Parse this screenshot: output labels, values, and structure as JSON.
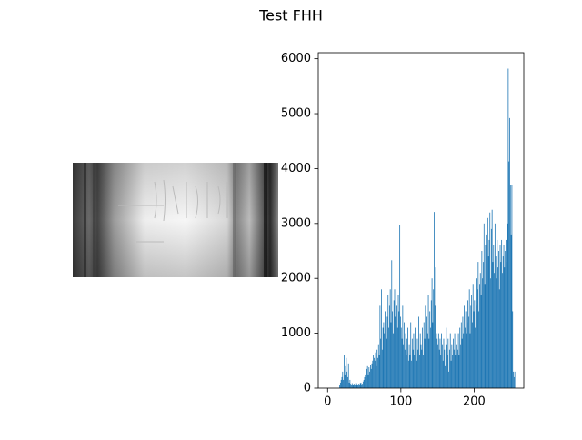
{
  "title": "Test FHH",
  "chart_data": {
    "type": "histogram",
    "color": "#1f77b4",
    "bins": [
      0,
      1,
      2,
      3,
      4,
      5,
      6,
      7,
      8,
      9,
      10,
      11,
      12,
      13,
      14,
      15,
      16,
      17,
      18,
      19,
      20,
      21,
      22,
      23,
      24,
      25,
      26,
      27,
      28,
      29,
      30,
      31,
      32,
      33,
      34,
      35,
      36,
      37,
      38,
      39,
      40,
      41,
      42,
      43,
      44,
      45,
      46,
      47,
      48,
      49,
      50,
      51,
      52,
      53,
      54,
      55,
      56,
      57,
      58,
      59,
      60,
      61,
      62,
      63,
      64,
      65,
      66,
      67,
      68,
      69,
      70,
      71,
      72,
      73,
      74,
      75,
      76,
      77,
      78,
      79,
      80,
      81,
      82,
      83,
      84,
      85,
      86,
      87,
      88,
      89,
      90,
      91,
      92,
      93,
      94,
      95,
      96,
      97,
      98,
      99,
      100,
      101,
      102,
      103,
      104,
      105,
      106,
      107,
      108,
      109,
      110,
      111,
      112,
      113,
      114,
      115,
      116,
      117,
      118,
      119,
      120,
      121,
      122,
      123,
      124,
      125,
      126,
      127,
      128,
      129,
      130,
      131,
      132,
      133,
      134,
      135,
      136,
      137,
      138,
      139,
      140,
      141,
      142,
      143,
      144,
      145,
      146,
      147,
      148,
      149,
      150,
      151,
      152,
      153,
      154,
      155,
      156,
      157,
      158,
      159,
      160,
      161,
      162,
      163,
      164,
      165,
      166,
      167,
      168,
      169,
      170,
      171,
      172,
      173,
      174,
      175,
      176,
      177,
      178,
      179,
      180,
      181,
      182,
      183,
      184,
      185,
      186,
      187,
      188,
      189,
      190,
      191,
      192,
      193,
      194,
      195,
      196,
      197,
      198,
      199,
      200,
      201,
      202,
      203,
      204,
      205,
      206,
      207,
      208,
      209,
      210,
      211,
      212,
      213,
      214,
      215,
      216,
      217,
      218,
      219,
      220,
      221,
      222,
      223,
      224,
      225,
      226,
      227,
      228,
      229,
      230,
      231,
      232,
      233,
      234,
      235,
      236,
      237,
      238,
      239,
      240,
      241,
      242,
      243,
      244,
      245,
      246,
      247,
      248,
      249,
      250,
      251,
      252,
      253,
      254,
      255,
      256
    ],
    "values": [
      0,
      0,
      0,
      0,
      0,
      0,
      0,
      0,
      0,
      0,
      0,
      0,
      0,
      0,
      0,
      0,
      50,
      100,
      150,
      200,
      300,
      150,
      600,
      250,
      400,
      550,
      300,
      200,
      450,
      100,
      150,
      80,
      60,
      90,
      50,
      70,
      80,
      60,
      100,
      90,
      70,
      50,
      80,
      60,
      90,
      100,
      70,
      80,
      120,
      150,
      200,
      250,
      300,
      350,
      400,
      250,
      380,
      300,
      420,
      350,
      450,
      500,
      600,
      550,
      500,
      650,
      400,
      700,
      550,
      800,
      600,
      1500,
      900,
      1800,
      700,
      1100,
      1200,
      1000,
      1400,
      1300,
      900,
      1300,
      1700,
      1100,
      1500,
      1800,
      1200,
      2330,
      1400,
      1000,
      1600,
      1800,
      1300,
      2000,
      1500,
      1100,
      1700,
      1400,
      2980,
      1300,
      1100,
      900,
      1500,
      800,
      1200,
      700,
      1000,
      600,
      900,
      1100,
      500,
      800,
      600,
      1200,
      500,
      900,
      700,
      1000,
      600,
      1100,
      800,
      500,
      900,
      700,
      1300,
      600,
      1000,
      800,
      700,
      1100,
      600,
      1200,
      900,
      1500,
      800,
      1300,
      1000,
      1700,
      900,
      1400,
      1100,
      1600,
      2000,
      1200,
      1800,
      3210,
      1500,
      2200,
      1000,
      900,
      800,
      1000,
      700,
      900,
      600,
      1000,
      800,
      500,
      900,
      700,
      400,
      800,
      1100,
      600,
      900,
      300,
      700,
      1000,
      500,
      800,
      600,
      900,
      700,
      1000,
      600,
      800,
      900,
      700,
      1000,
      600,
      1100,
      800,
      1200,
      900,
      1300,
      1000,
      1500,
      1100,
      1400,
      1000,
      1200,
      1600,
      1300,
      1800,
      1000,
      1500,
      1700,
      1200,
      1900,
      1400,
      1600,
      1100,
      2000,
      1500,
      1800,
      2300,
      1400,
      1900,
      2100,
      1700,
      2500,
      2000,
      2300,
      3000,
      1900,
      2600,
      2800,
      2200,
      3100,
      2400,
      2700,
      3200,
      2000,
      2900,
      3250,
      2300,
      2600,
      2100,
      3000,
      2400,
      2000,
      2700,
      2200,
      2500,
      1800,
      2600,
      2300,
      2700,
      2100,
      2400,
      2600,
      2200,
      2500,
      2700,
      2300,
      3000,
      5820,
      4130,
      4920,
      3700,
      2800,
      3700,
      1400,
      300,
      200,
      300
    ],
    "xlim": [
      -12.75,
      267.75
    ],
    "ylim": [
      0,
      6110
    ],
    "xticks": [
      0,
      100,
      200
    ],
    "yticks": [
      0,
      1000,
      2000,
      3000,
      4000,
      5000,
      6000
    ]
  }
}
